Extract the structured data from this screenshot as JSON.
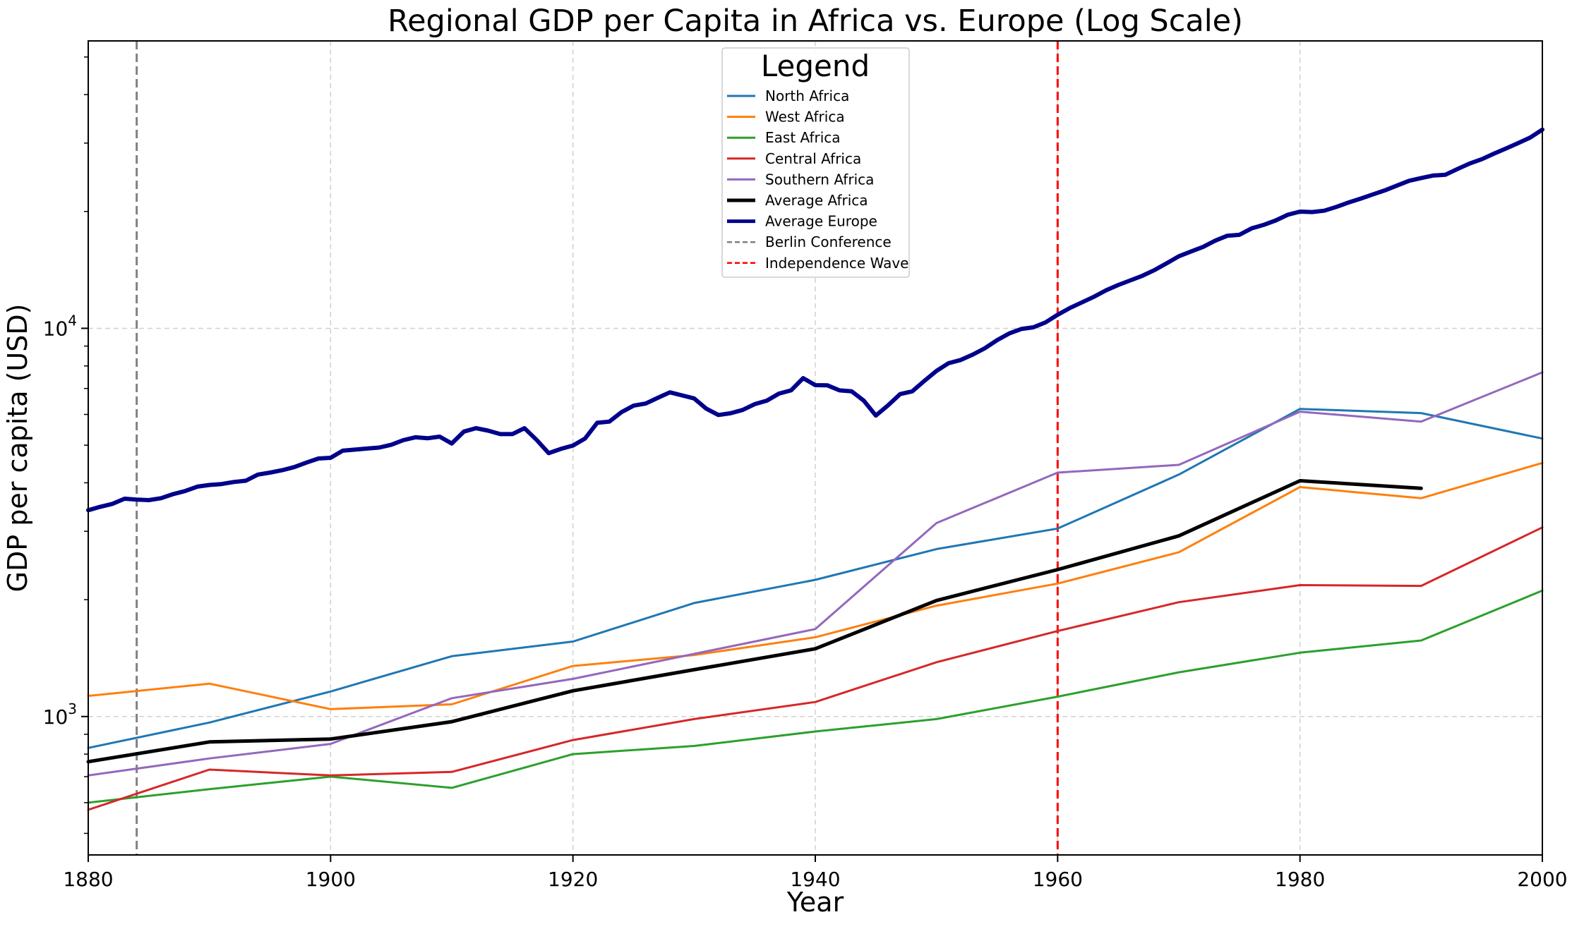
{
  "chart_data": {
    "type": "line",
    "title": "Regional GDP per Capita in Africa vs. Europe (Log Scale)",
    "xlabel": "Year",
    "ylabel": "GDP per capita (USD)",
    "xlim": [
      1880,
      2000
    ],
    "ylim": [
      440,
      55000
    ],
    "yscale": "log",
    "grid": true,
    "legend": {
      "title": "Legend",
      "placement": "top-center",
      "entries": [
        "North Africa",
        "West Africa",
        "East Africa",
        "Central Africa",
        "Southern Africa",
        "Average Africa",
        "Average Europe",
        "Berlin Conference",
        "Independence Wave"
      ]
    },
    "x_ticks": [
      {
        "value": 1880,
        "label": "1880"
      },
      {
        "value": 1900,
        "label": "1900"
      },
      {
        "value": 1920,
        "label": "1920"
      },
      {
        "value": 1940,
        "label": "1940"
      },
      {
        "value": 1960,
        "label": "1960"
      },
      {
        "value": 1980,
        "label": "1980"
      },
      {
        "value": 2000,
        "label": "2000"
      }
    ],
    "y_ticks": [
      {
        "value": 1000,
        "base": "10",
        "exp": "3"
      },
      {
        "value": 10000,
        "base": "10",
        "exp": "4"
      }
    ],
    "series": [
      {
        "name": "North Africa",
        "color": "#1f77b4",
        "width": 3,
        "x": [
          1880,
          1890,
          1900,
          1910,
          1920,
          1930,
          1940,
          1950,
          1960,
          1970,
          1980,
          1990,
          2000
        ],
        "y": [
          830,
          965,
          1160,
          1430,
          1560,
          1960,
          2250,
          2700,
          3050,
          4200,
          6200,
          6050,
          5200
        ]
      },
      {
        "name": "West Africa",
        "color": "#ff7f0e",
        "width": 3,
        "x": [
          1880,
          1890,
          1900,
          1910,
          1920,
          1930,
          1940,
          1950,
          1960,
          1970,
          1980,
          1990,
          2000
        ],
        "y": [
          1130,
          1215,
          1045,
          1075,
          1350,
          1440,
          1600,
          1930,
          2200,
          2650,
          3900,
          3650,
          4500
        ]
      },
      {
        "name": "East Africa",
        "color": "#2ca02c",
        "width": 3,
        "x": [
          1880,
          1890,
          1900,
          1910,
          1920,
          1930,
          1940,
          1950,
          1960,
          1970,
          1980,
          1990,
          2000
        ],
        "y": [
          600,
          650,
          700,
          655,
          800,
          840,
          915,
          985,
          1125,
          1300,
          1460,
          1570,
          2110
        ]
      },
      {
        "name": "Central Africa",
        "color": "#d62728",
        "width": 3,
        "x": [
          1880,
          1890,
          1900,
          1910,
          1920,
          1930,
          1940,
          1950,
          1960,
          1970,
          1980,
          1990,
          2000
        ],
        "y": [
          575,
          730,
          705,
          720,
          870,
          985,
          1090,
          1380,
          1660,
          1970,
          2180,
          2170,
          3070
        ]
      },
      {
        "name": "Southern Africa",
        "color": "#9467bd",
        "width": 3,
        "x": [
          1880,
          1890,
          1900,
          1910,
          1920,
          1930,
          1940,
          1950,
          1960,
          1970,
          1980,
          1990,
          2000
        ],
        "y": [
          705,
          780,
          850,
          1115,
          1250,
          1450,
          1680,
          3150,
          4250,
          4450,
          6100,
          5750,
          7700
        ]
      },
      {
        "name": "Average Africa",
        "color": "#000000",
        "width": 5,
        "x": [
          1880,
          1890,
          1900,
          1910,
          1920,
          1930,
          1940,
          1950,
          1960,
          1970,
          1980,
          1990
        ],
        "y": [
          765,
          860,
          875,
          970,
          1165,
          1320,
          1495,
          1990,
          2390,
          2920,
          4050,
          3870
        ]
      },
      {
        "name": "Average Europe",
        "color": "#00008b",
        "width": 6,
        "x": [
          1880,
          1881,
          1882,
          1883,
          1884,
          1885,
          1886,
          1887,
          1888,
          1889,
          1890,
          1891,
          1892,
          1893,
          1894,
          1895,
          1896,
          1897,
          1898,
          1899,
          1900,
          1901,
          1902,
          1903,
          1904,
          1905,
          1906,
          1907,
          1908,
          1909,
          1910,
          1911,
          1912,
          1913,
          1914,
          1915,
          1916,
          1917,
          1918,
          1919,
          1920,
          1921,
          1922,
          1923,
          1924,
          1925,
          1926,
          1927,
          1928,
          1929,
          1930,
          1931,
          1932,
          1933,
          1934,
          1935,
          1936,
          1937,
          1938,
          1939,
          1940,
          1941,
          1942,
          1943,
          1944,
          1945,
          1946,
          1947,
          1948,
          1949,
          1950,
          1951,
          1952,
          1953,
          1954,
          1955,
          1956,
          1957,
          1958,
          1959,
          1960,
          1961,
          1962,
          1963,
          1964,
          1965,
          1966,
          1967,
          1968,
          1969,
          1970,
          1971,
          1972,
          1973,
          1974,
          1975,
          1976,
          1977,
          1978,
          1979,
          1980,
          1981,
          1982,
          1983,
          1984,
          1985,
          1986,
          1987,
          1988,
          1989,
          1990,
          1991,
          1992,
          1993,
          1994,
          1995,
          1996,
          1997,
          1998,
          1999,
          2000
        ],
        "y": [
          3400,
          3470,
          3530,
          3640,
          3620,
          3610,
          3650,
          3740,
          3810,
          3910,
          3950,
          3970,
          4020,
          4050,
          4200,
          4250,
          4310,
          4390,
          4510,
          4620,
          4640,
          4840,
          4870,
          4900,
          4930,
          5010,
          5150,
          5240,
          5210,
          5260,
          5050,
          5420,
          5530,
          5450,
          5340,
          5340,
          5530,
          5160,
          4770,
          4890,
          4990,
          5200,
          5710,
          5750,
          6080,
          6320,
          6400,
          6620,
          6840,
          6720,
          6600,
          6210,
          5980,
          6040,
          6160,
          6380,
          6510,
          6790,
          6920,
          7440,
          7140,
          7130,
          6920,
          6880,
          6510,
          5960,
          6330,
          6770,
          6880,
          7320,
          7770,
          8130,
          8290,
          8560,
          8890,
          9320,
          9700,
          9960,
          10060,
          10360,
          10840,
          11280,
          11660,
          12060,
          12530,
          12930,
          13290,
          13660,
          14130,
          14710,
          15330,
          15770,
          16200,
          16820,
          17320,
          17410,
          18090,
          18470,
          18960,
          19620,
          19980,
          19930,
          20090,
          20550,
          21090,
          21580,
          22120,
          22660,
          23320,
          23990,
          24380,
          24750,
          24870,
          25730,
          26580,
          27270,
          28170,
          29060,
          30000,
          31000,
          32500
        ]
      }
    ],
    "vlines": [
      {
        "name": "Berlin Conference",
        "x": 1884,
        "color": "#808080"
      },
      {
        "name": "Independence Wave",
        "x": 1960,
        "color": "#ff0000"
      }
    ]
  }
}
